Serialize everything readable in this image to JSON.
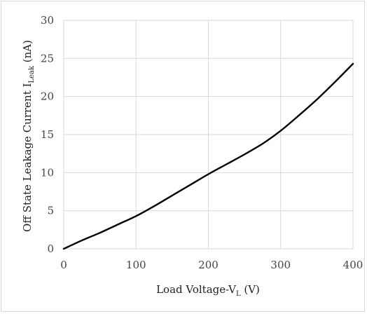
{
  "chart_data": {
    "type": "line",
    "title": "",
    "xlabel": {
      "main": "Load Voltage-V",
      "sub": "L",
      "suffix": " (V)"
    },
    "ylabel": {
      "main": "Off State Leakage Current I",
      "sub": "Leak",
      "suffix": " (nA)"
    },
    "xlim": [
      0,
      400
    ],
    "ylim": [
      0,
      30
    ],
    "x_ticks": [
      "0",
      "100",
      "200",
      "300",
      "400"
    ],
    "y_ticks": [
      "0",
      "5",
      "10",
      "15",
      "20",
      "25",
      "30"
    ],
    "grid": true,
    "legend": "none",
    "series": [
      {
        "color": "#000000",
        "x": [
          0,
          25,
          50,
          75,
          100,
          125,
          150,
          175,
          200,
          225,
          250,
          275,
          300,
          325,
          350,
          375,
          400
        ],
        "y": [
          0,
          1.1,
          2.1,
          3.2,
          4.3,
          5.6,
          7.0,
          8.4,
          9.8,
          11.1,
          12.4,
          13.8,
          15.5,
          17.5,
          19.6,
          21.9,
          24.3
        ]
      }
    ]
  }
}
